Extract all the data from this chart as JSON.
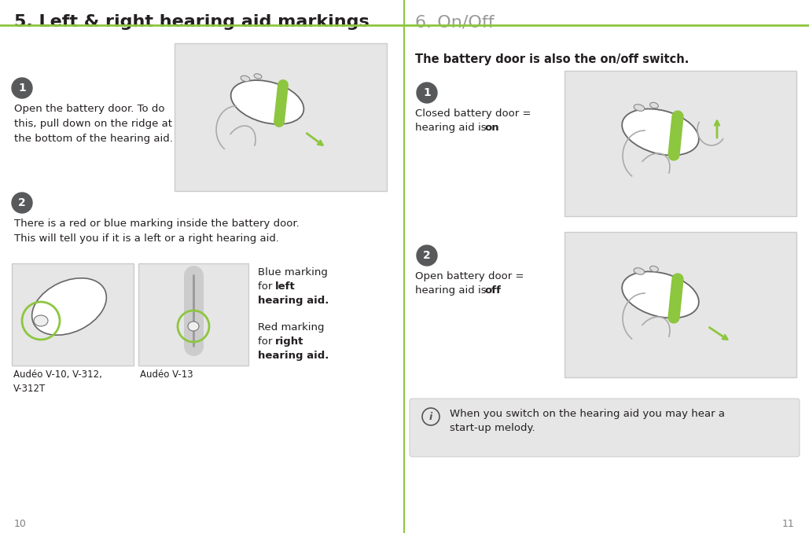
{
  "bg_color": "#ffffff",
  "divider_color": "#8dc63f",
  "left_title": "5. Left & right hearing aid markings",
  "right_title": "6. On/Off",
  "left_title_color": "#231f20",
  "right_title_color": "#999999",
  "step_circle_color": "#58595b",
  "step_text_color": "#ffffff",
  "body_text_color": "#231f20",
  "green_color": "#8dc63f",
  "image_bg": "#e6e6e6",
  "image_border": "#cccccc",
  "info_box_bg": "#e6e6e6",
  "page_num_color": "#808080",
  "left_page": "10",
  "right_page": "11",
  "left_step1_text": "Open the battery door. To do\nthis, pull down on the ridge at\nthe bottom of the hearing aid.",
  "left_step2_text": "There is a red or blue marking inside the battery door.\nThis will tell you if it is a left or a right hearing aid.",
  "blue_marking_line1": "Blue marking",
  "blue_marking_line2": "for ",
  "blue_marking_bold": "left",
  "blue_marking_line3": "hearing aid.",
  "red_marking_line1": "Red marking",
  "red_marking_line2": "for ",
  "red_marking_bold": "right",
  "red_marking_line3": "hearing aid.",
  "caption_left": "Audéo V-10, V-312,\nV-312T",
  "caption_right": "Audéo V-13",
  "right_subtitle": "The battery door is also the on/off switch.",
  "right_step1_line1": "Closed battery door =",
  "right_step1_line2a": "hearing aid is ",
  "right_step1_bold": "on",
  "right_step2_line1": "Open battery door =",
  "right_step2_line2a": "hearing aid is ",
  "right_step2_bold": "off",
  "info_text_line1": "When you switch on the hearing aid you may hear a",
  "info_text_line2": "start-up melody."
}
